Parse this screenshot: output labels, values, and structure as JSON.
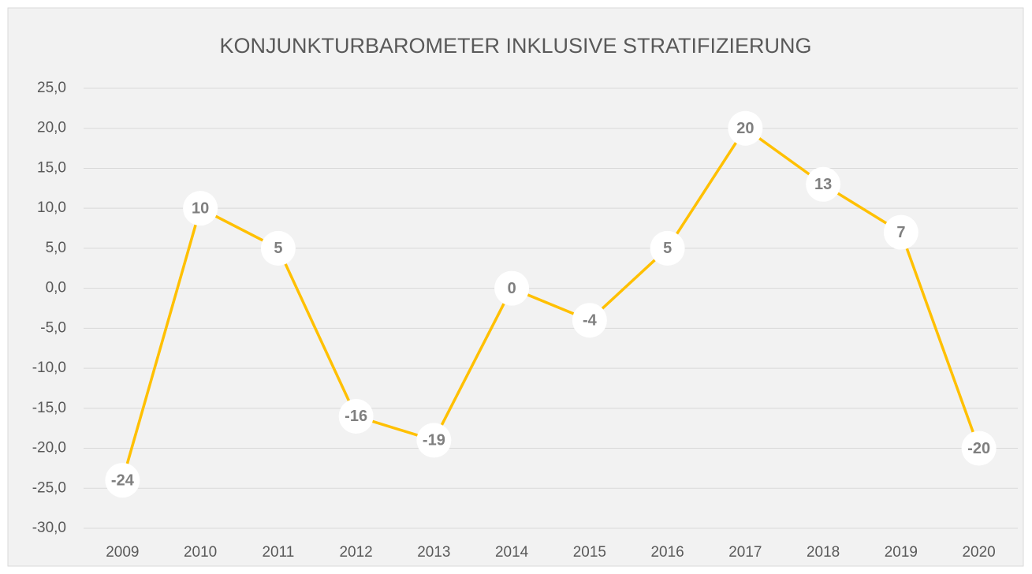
{
  "chart_data": {
    "type": "line",
    "title": "KONJUNKTURBAROMETER INKLUSIVE STRATIFIZIERUNG",
    "categories": [
      "2009",
      "2010",
      "2011",
      "2012",
      "2013",
      "2014",
      "2015",
      "2016",
      "2017",
      "2018",
      "2019",
      "2020"
    ],
    "values": [
      -24,
      10,
      5,
      -16,
      -19,
      0,
      -4,
      5,
      20,
      13,
      7,
      -20
    ],
    "color": "#ffc000",
    "ylim": [
      -30,
      25
    ],
    "yticks": [
      {
        "value": -30,
        "label": "-30,0"
      },
      {
        "value": -25,
        "label": "-25,0"
      },
      {
        "value": -20,
        "label": "-20,0"
      },
      {
        "value": -15,
        "label": "-15,0"
      },
      {
        "value": -10,
        "label": "-10,0"
      },
      {
        "value": -5,
        "label": "-5,0"
      },
      {
        "value": 0,
        "label": "0,0"
      },
      {
        "value": 5,
        "label": "5,0"
      },
      {
        "value": 10,
        "label": "10,0"
      },
      {
        "value": 15,
        "label": "15,0"
      },
      {
        "value": 20,
        "label": "20,0"
      },
      {
        "value": 25,
        "label": "25,0"
      }
    ],
    "grid": true
  }
}
